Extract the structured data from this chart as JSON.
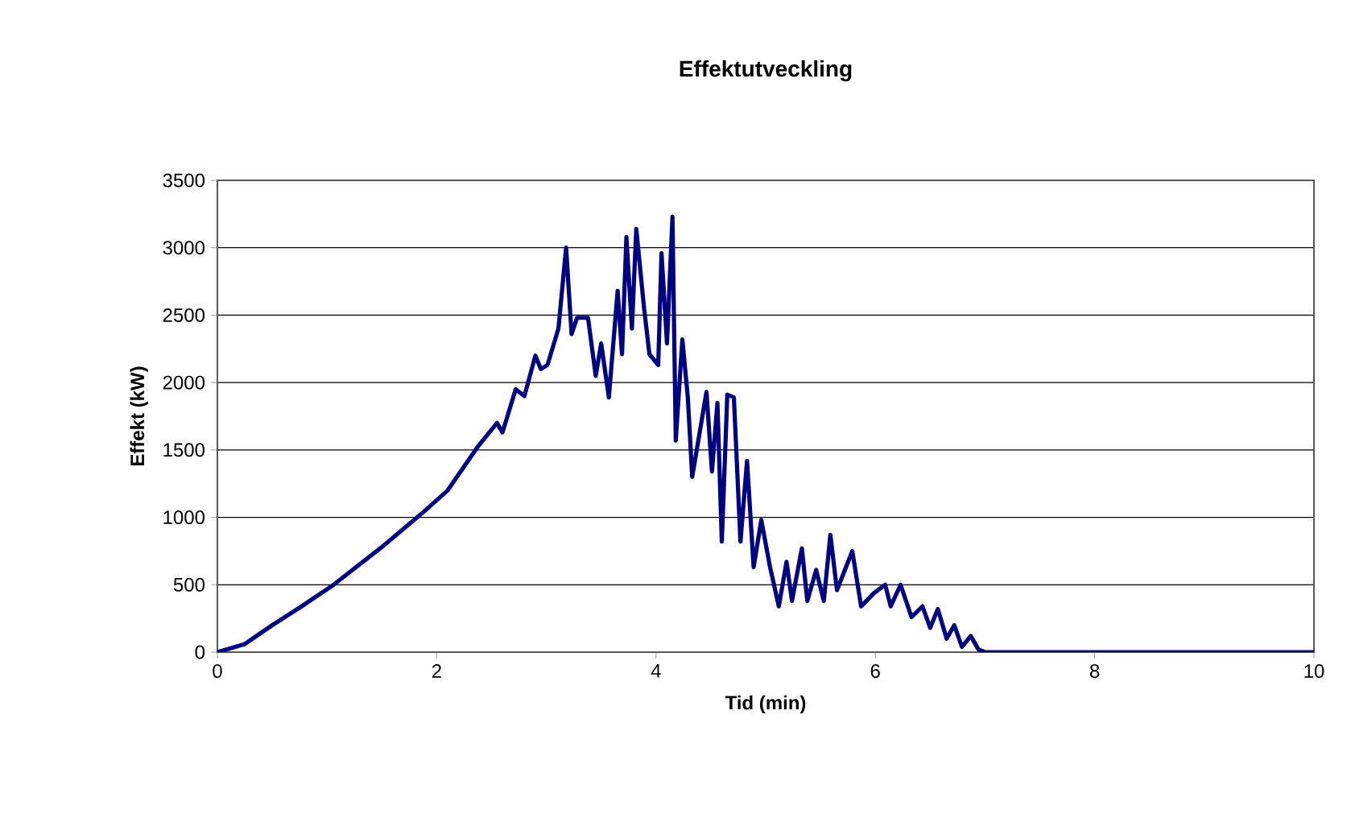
{
  "chart_data": {
    "type": "line",
    "title": "Effektutveckling",
    "xlabel": "Tid (min)",
    "ylabel": "Effekt (kW)",
    "xlim": [
      0,
      10
    ],
    "xticks": [
      0,
      2,
      4,
      6,
      8,
      10
    ],
    "ylim": [
      0,
      3500
    ],
    "yticks": [
      0,
      500,
      1000,
      1500,
      2000,
      2500,
      3000,
      3500
    ],
    "grid": "y",
    "marker": "none",
    "line_style": "solid",
    "series": [
      {
        "color": "#000080",
        "x": [
          0,
          0.25,
          0.5,
          0.75,
          1.06,
          1.5,
          1.88,
          2.1,
          2.38,
          2.55,
          2.6,
          2.72,
          2.8,
          2.9,
          2.95,
          3.01,
          3.11,
          3.18,
          3.23,
          3.28,
          3.38,
          3.45,
          3.5,
          3.57,
          3.65,
          3.69,
          3.73,
          3.78,
          3.82,
          3.89,
          3.94,
          4.02,
          4.05,
          4.1,
          4.15,
          4.18,
          4.24,
          4.29,
          4.33,
          4.46,
          4.51,
          4.56,
          4.6,
          4.65,
          4.71,
          4.77,
          4.83,
          4.89,
          4.96,
          5.04,
          5.12,
          5.19,
          5.24,
          5.33,
          5.38,
          5.46,
          5.53,
          5.59,
          5.65,
          5.79,
          5.87,
          5.99,
          6.09,
          6.14,
          6.23,
          6.33,
          6.43,
          6.5,
          6.57,
          6.65,
          6.72,
          6.79,
          6.87,
          6.94,
          7.0,
          7.5,
          8,
          9,
          10
        ],
        "values": [
          0,
          60,
          200,
          330,
          500,
          780,
          1040,
          1200,
          1530,
          1700,
          1630,
          1950,
          1900,
          2200,
          2100,
          2130,
          2400,
          3000,
          2360,
          2480,
          2480,
          2050,
          2290,
          1890,
          2680,
          2210,
          3080,
          2400,
          3140,
          2560,
          2210,
          2130,
          2960,
          2290,
          3230,
          1570,
          2320,
          1890,
          1300,
          1930,
          1340,
          1850,
          820,
          1910,
          1890,
          820,
          1420,
          630,
          980,
          630,
          340,
          670,
          380,
          770,
          380,
          610,
          380,
          870,
          460,
          750,
          340,
          440,
          500,
          340,
          500,
          260,
          340,
          180,
          320,
          100,
          200,
          40,
          120,
          20,
          0,
          0,
          0,
          0,
          0
        ]
      }
    ]
  }
}
